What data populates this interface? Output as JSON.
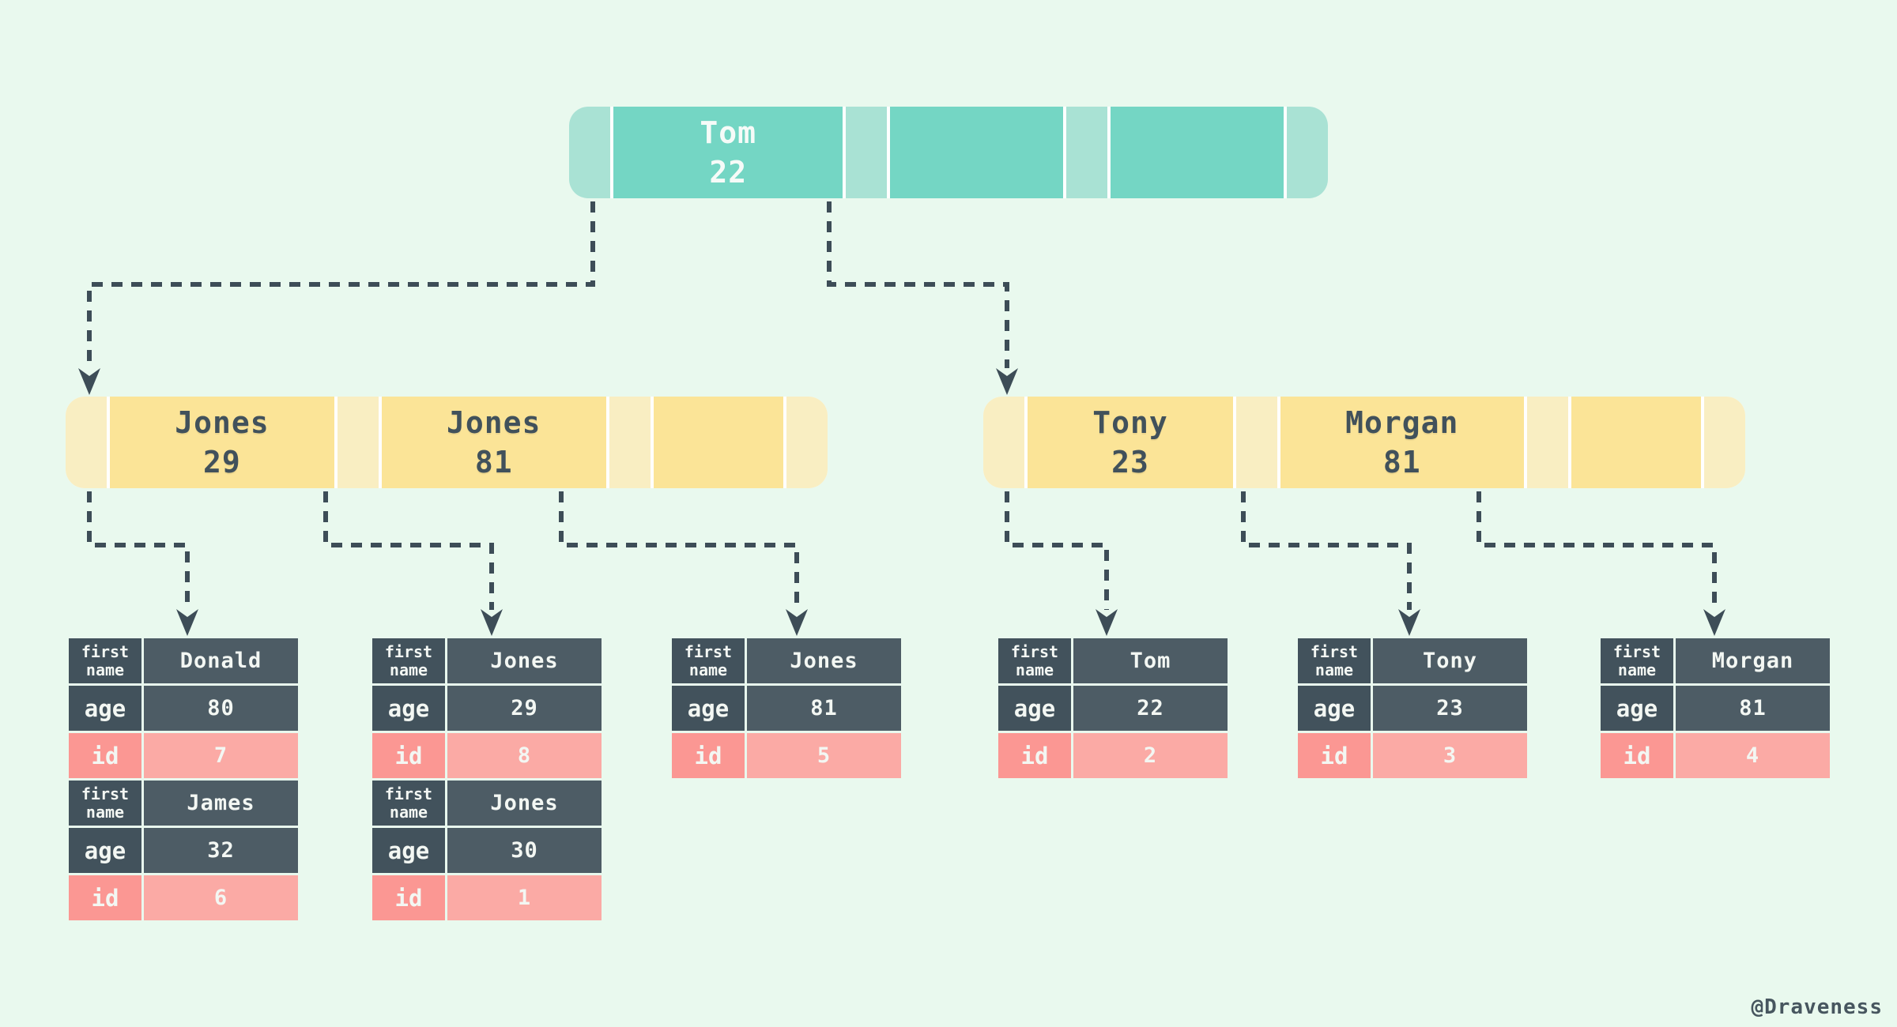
{
  "credit": "@Draveness",
  "colors": {
    "background": "#e9f9ee",
    "teal_key": "#74d6c4",
    "teal_pointer": "#a9e2d4",
    "yellow_key": "#fbe497",
    "yellow_pointer": "#f9eec2",
    "slate_dark": "#3d4d57",
    "table_label_dark": "#42525c",
    "table_value_dark": "#4d5c65",
    "table_label_pink": "#fb9793",
    "table_value_pink": "#fbaaa5",
    "text_light": "#f3f7f3"
  },
  "field_labels": {
    "first_name": "first name",
    "age": "age",
    "id": "id"
  },
  "tree": {
    "root": {
      "keys": [
        {
          "name": "Tom",
          "age": "22"
        },
        {
          "name": "",
          "age": ""
        },
        {
          "name": "",
          "age": ""
        }
      ]
    },
    "left_internal": {
      "keys": [
        {
          "name": "Jones",
          "age": "29"
        },
        {
          "name": "Jones",
          "age": "81"
        },
        {
          "name": "",
          "age": ""
        }
      ]
    },
    "right_internal": {
      "keys": [
        {
          "name": "Tony",
          "age": "23"
        },
        {
          "name": "Morgan",
          "age": "81"
        },
        {
          "name": "",
          "age": ""
        }
      ]
    }
  },
  "leaf_tables": [
    {
      "records": [
        {
          "first_name": "Donald",
          "age": "80",
          "id": "7"
        },
        {
          "first_name": "James",
          "age": "32",
          "id": "6"
        }
      ]
    },
    {
      "records": [
        {
          "first_name": "Jones",
          "age": "29",
          "id": "8"
        },
        {
          "first_name": "Jones",
          "age": "30",
          "id": "1"
        }
      ]
    },
    {
      "records": [
        {
          "first_name": "Jones",
          "age": "81",
          "id": "5"
        }
      ]
    },
    {
      "records": [
        {
          "first_name": "Tom",
          "age": "22",
          "id": "2"
        }
      ]
    },
    {
      "records": [
        {
          "first_name": "Tony",
          "age": "23",
          "id": "3"
        }
      ]
    },
    {
      "records": [
        {
          "first_name": "Morgan",
          "age": "81",
          "id": "4"
        }
      ]
    }
  ]
}
